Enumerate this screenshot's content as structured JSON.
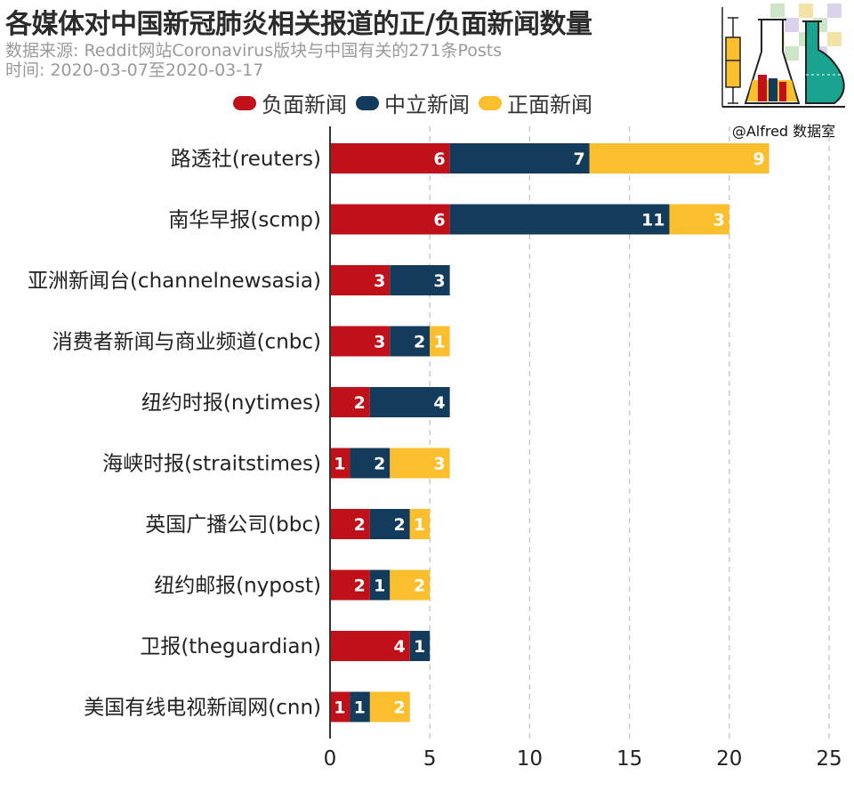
{
  "header": {
    "title": "各媒体对中国新冠肺炎相关报道的正/负面新闻数量",
    "subtitle_source": "数据来源: Reddit网站Coronavirus版块与中国有关的271条Posts",
    "subtitle_time": "时间: 2020-03-07至2020-03-17"
  },
  "logo": {
    "caption": "@Alfred 数据室"
  },
  "colors": {
    "negative": "#c0101a",
    "neutral": "#123b5c",
    "positive": "#fbbf2d",
    "axis": "#333333",
    "grid": "#c8c8c8"
  },
  "chart_data": {
    "type": "bar",
    "orientation": "horizontal",
    "stacked": true,
    "title": "各媒体对中国新冠肺炎相关报道的正/负面新闻数量",
    "categories": [
      "路透社(reuters)",
      "南华早报(scmp)",
      "亚洲新闻台(channelnewsasia)",
      "消费者新闻与商业频道(cnbc)",
      "纽约时报(nytimes)",
      "海峡时报(straitstimes)",
      "英国广播公司(bbc)",
      "纽约邮报(nypost)",
      "卫报(theguardian)",
      "美国有线电视新闻网(cnn)"
    ],
    "series": [
      {
        "name": "负面新闻",
        "color": "#c0101a",
        "values": [
          6,
          6,
          3,
          3,
          2,
          1,
          2,
          2,
          4,
          1
        ]
      },
      {
        "name": "中立新闻",
        "color": "#123b5c",
        "values": [
          7,
          11,
          3,
          2,
          4,
          2,
          2,
          1,
          1,
          1
        ]
      },
      {
        "name": "正面新闻",
        "color": "#fbbf2d",
        "values": [
          9,
          3,
          0,
          1,
          0,
          3,
          1,
          2,
          0,
          2
        ]
      }
    ],
    "xlim": [
      0,
      25
    ],
    "xticks": [
      0,
      5,
      10,
      15,
      20,
      25
    ],
    "xlabel": "",
    "ylabel": "",
    "grid": "vertical dashed",
    "legend_position": "top"
  }
}
